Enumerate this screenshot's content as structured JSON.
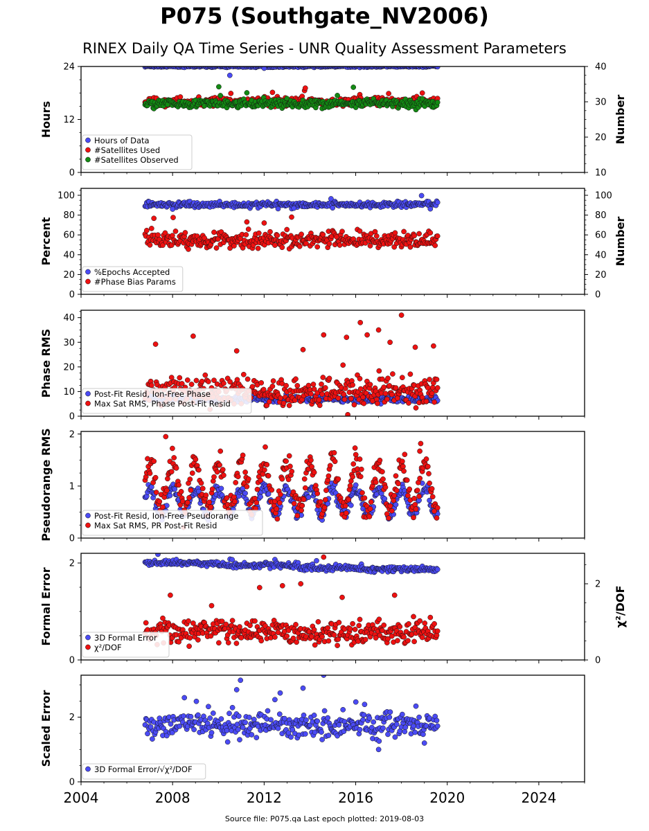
{
  "title": "P075 (Southgate_NV2006)",
  "subtitle": "RINEX Daily QA Time Series - UNR Quality Assessment Parameters",
  "footer": "Source file: P075.qa Last epoch plotted: 2019-08-03",
  "colors": {
    "blue": "#4b4bf5",
    "red": "#ee1111",
    "green": "#138a13",
    "edge": "#111111"
  },
  "chart_data": [
    {
      "type": "scatter",
      "ylabel": "Hours",
      "ylim": [
        0,
        24
      ],
      "yticks": [
        0,
        12,
        24
      ],
      "right_axis": {
        "label": "Number",
        "ylim": [
          10,
          40
        ],
        "ticks": [
          10,
          20,
          30,
          40
        ]
      },
      "legend": {
        "placement": "lower-left",
        "entries": [
          "Hours of Data",
          "#Satellites Used",
          "#Satellites Observed"
        ]
      },
      "series": [
        {
          "name": "Hours of Data",
          "color": "blue",
          "axis": "left",
          "x_range": [
            2006.8,
            2019.6
          ],
          "base": 24.0,
          "noise": 0.1,
          "outliers": [
            [
              2010.5,
              22.0
            ],
            [
              2012.0,
              23.6
            ]
          ]
        },
        {
          "name": "#Satellites Used",
          "color": "red",
          "axis": "right",
          "x_range": [
            2006.8,
            2019.6
          ],
          "base": 30.0,
          "noise": 0.6,
          "outliers": [
            [
              2008.9,
              30.0
            ]
          ]
        },
        {
          "name": "#Satellites Observed",
          "color": "green",
          "axis": "right",
          "x_range": [
            2006.8,
            2019.6
          ],
          "base": 29.5,
          "noise": 0.6,
          "outliers": []
        }
      ]
    },
    {
      "type": "scatter",
      "ylabel": "Percent",
      "ylim": [
        0,
        107
      ],
      "yticks": [
        0,
        20,
        40,
        60,
        80,
        100
      ],
      "right_axis": {
        "label": "Number",
        "ylim": [
          0,
          107
        ],
        "ticks": [
          0,
          20,
          40,
          60,
          80,
          100
        ]
      },
      "legend": {
        "placement": "lower-left",
        "entries": [
          "%Epochs Accepted",
          "#Phase Bias Params"
        ]
      },
      "series": [
        {
          "name": "%Epochs Accepted",
          "color": "blue",
          "axis": "left",
          "x_range": [
            2006.8,
            2019.6
          ],
          "base": 90.5,
          "noise": 1.5,
          "outliers": [
            [
              2008.0,
              86.0
            ],
            [
              2013.3,
              87.0
            ]
          ]
        },
        {
          "name": "#Phase Bias Params",
          "color": "red",
          "axis": "right",
          "x_range": [
            2006.8,
            2019.6
          ],
          "base": 55.0,
          "noise": 4.0,
          "outliers": [
            [
              2013.2,
              78.0
            ],
            [
              2012.0,
              72.0
            ]
          ]
        }
      ]
    },
    {
      "type": "scatter",
      "ylabel": "Phase RMS",
      "ylim": [
        0,
        43
      ],
      "yticks": [
        0,
        10,
        20,
        30,
        40
      ],
      "legend": {
        "placement": "lower-left",
        "entries": [
          "Post-Fit Resid, Ion-Free Phase",
          "Max Sat RMS, Phase Post-Fit Resid"
        ]
      },
      "series": [
        {
          "name": "Post-Fit Resid, Ion-Free Phase",
          "color": "blue",
          "axis": "left",
          "x_range": [
            2006.8,
            2019.6
          ],
          "base": 7.0,
          "noise": 0.6,
          "outliers": [
            [
              2017.1,
              5.0
            ]
          ]
        },
        {
          "name": "Max Sat RMS, Phase Post-Fit Resid",
          "color": "red",
          "axis": "left",
          "x_range": [
            2006.8,
            2019.6
          ],
          "base": 10.0,
          "noise": 3.0,
          "outliers": [
            [
              2018.0,
              41.0
            ],
            [
              2016.2,
              38.0
            ],
            [
              2017.0,
              35.0
            ],
            [
              2008.9,
              32.5
            ],
            [
              2014.6,
              33.0
            ],
            [
              2015.6,
              32.0
            ],
            [
              2016.5,
              33.0
            ],
            [
              2017.5,
              30.0
            ],
            [
              2018.6,
              28.0
            ],
            [
              2019.4,
              28.5
            ],
            [
              2010.8,
              26.5
            ],
            [
              2013.7,
              27.0
            ]
          ]
        }
      ]
    },
    {
      "type": "scatter",
      "ylabel": "Pseudorange RMS",
      "ylim": [
        0,
        2.05
      ],
      "yticks": [
        0,
        1,
        2
      ],
      "legend": {
        "placement": "lower-left",
        "entries": [
          "Post-Fit Resid, Ion-Free Pseudorange",
          "Max Sat RMS, PR Post-Fit Resid"
        ]
      },
      "series": [
        {
          "name": "Post-Fit Resid, Ion-Free Pseudorange",
          "color": "blue",
          "axis": "left",
          "x_range": [
            2006.8,
            2019.6
          ],
          "seasonal": [
            0.45,
            0.95
          ],
          "noise": 0.06,
          "outliers": []
        },
        {
          "name": "Max Sat RMS, PR Post-Fit Resid",
          "color": "red",
          "axis": "left",
          "x_range": [
            2006.8,
            2019.6
          ],
          "seasonal": [
            0.55,
            1.45
          ],
          "noise": 0.12,
          "outliers": [
            [
              2007.7,
              1.95
            ],
            [
              2018.8,
              1.67
            ]
          ]
        }
      ]
    },
    {
      "type": "scatter",
      "ylabel": "Formal Error",
      "ylim": [
        0,
        2.2
      ],
      "yticks": [
        0,
        2
      ],
      "right_axis": {
        "label": "χ²/DOF",
        "ylim": [
          0,
          2.8
        ],
        "ticks": [
          0,
          2
        ]
      },
      "legend": {
        "placement": "lower-left",
        "entries": [
          "3D Formal Error",
          "χ²/DOF"
        ]
      },
      "series": [
        {
          "name": "3D Formal Error",
          "color": "blue",
          "axis": "left",
          "x_range": [
            2006.8,
            2019.6
          ],
          "steps": [
            [
              2006.8,
              2.0
            ],
            [
              2010.0,
              1.95
            ],
            [
              2013.5,
              1.9
            ],
            [
              2016.0,
              1.87
            ]
          ],
          "noise": 0.03,
          "outliers": [
            [
              2010.6,
              2.07
            ]
          ]
        },
        {
          "name": "χ²/DOF",
          "color": "red",
          "axis": "right",
          "x_range": [
            2006.8,
            2019.6
          ],
          "base": 0.75,
          "noise": 0.15,
          "outliers": [
            [
              2014.6,
              2.7
            ],
            [
              2013.6,
              2.0
            ],
            [
              2012.8,
              1.95
            ],
            [
              2011.8,
              1.9
            ],
            [
              2017.7,
              1.7
            ],
            [
              2007.9,
              1.7
            ]
          ]
        }
      ]
    },
    {
      "type": "scatter",
      "ylabel": "Scaled Error",
      "ylim": [
        0,
        3.3
      ],
      "yticks": [
        0,
        2
      ],
      "xlim": [
        2004,
        2026
      ],
      "xticks": [
        2004,
        2008,
        2012,
        2016,
        2020,
        2024
      ],
      "legend": {
        "placement": "lower-left",
        "entries": [
          "3D Formal Error/√χ²/DOF"
        ]
      },
      "series": [
        {
          "name": "3D Formal Error/√χ²/DOF",
          "color": "blue",
          "axis": "left",
          "x_range": [
            2006.8,
            2019.6
          ],
          "base": 1.75,
          "noise": 0.2,
          "outliers": [
            [
              2014.6,
              3.3
            ],
            [
              2013.7,
              2.9
            ],
            [
              2010.8,
              2.85
            ],
            [
              2012.7,
              2.75
            ],
            [
              2017.0,
              1.0
            ],
            [
              2019.0,
              1.2
            ]
          ]
        }
      ]
    }
  ],
  "x_axis": {
    "xlim": [
      2004,
      2026
    ],
    "xticks": [
      "2004",
      "2008",
      "2012",
      "2016",
      "2020",
      "2024"
    ]
  }
}
